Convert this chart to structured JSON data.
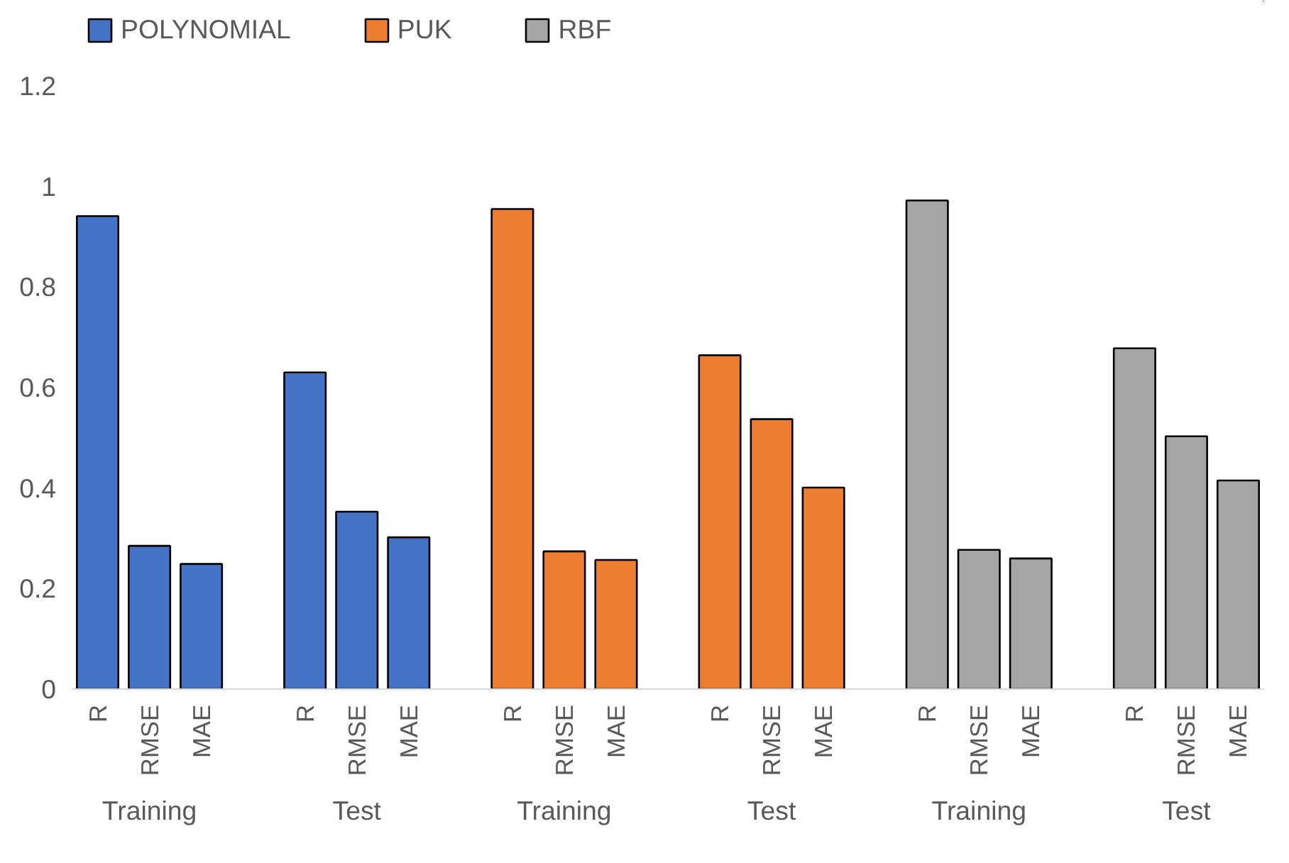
{
  "chart_data": {
    "type": "bar",
    "categories": [
      "R",
      "RMSE",
      "MAE",
      null,
      "R",
      "RMSE",
      "MAE",
      null,
      "R",
      "RMSE",
      "MAE",
      null,
      "R",
      "RMSE",
      "MAE",
      null,
      "R",
      "RMSE",
      "MAE",
      null,
      "R",
      "RMSE",
      "MAE"
    ],
    "series": [
      {
        "name": "POLYNOMIAL",
        "color": "#4472c4",
        "values": [
          0.941,
          0.285,
          0.249,
          null,
          0.63,
          0.353,
          0.302,
          null,
          null,
          null,
          null,
          null,
          null,
          null,
          null,
          null,
          null,
          null,
          null,
          null,
          null,
          null,
          null
        ]
      },
      {
        "name": "PUK",
        "color": "#ed7d31",
        "values": [
          null,
          null,
          null,
          null,
          null,
          null,
          null,
          null,
          0.955,
          0.274,
          0.257,
          null,
          0.664,
          0.537,
          0.401,
          null,
          null,
          null,
          null,
          null,
          null,
          null,
          null
        ]
      },
      {
        "name": "RBF",
        "color": "#a5a5a5",
        "values": [
          null,
          null,
          null,
          null,
          null,
          null,
          null,
          null,
          null,
          null,
          null,
          null,
          null,
          null,
          null,
          null,
          0.972,
          0.277,
          0.26,
          null,
          0.678,
          0.503,
          0.415
        ]
      }
    ],
    "annotations": [
      "Training",
      "Test",
      "Training",
      "Test",
      "Training",
      "Test"
    ],
    "ylim": [
      0,
      1.2
    ],
    "yticks": [
      0,
      0.2,
      0.4,
      0.6,
      0.8,
      1,
      1.2
    ],
    "grid": false,
    "legend": "top"
  }
}
